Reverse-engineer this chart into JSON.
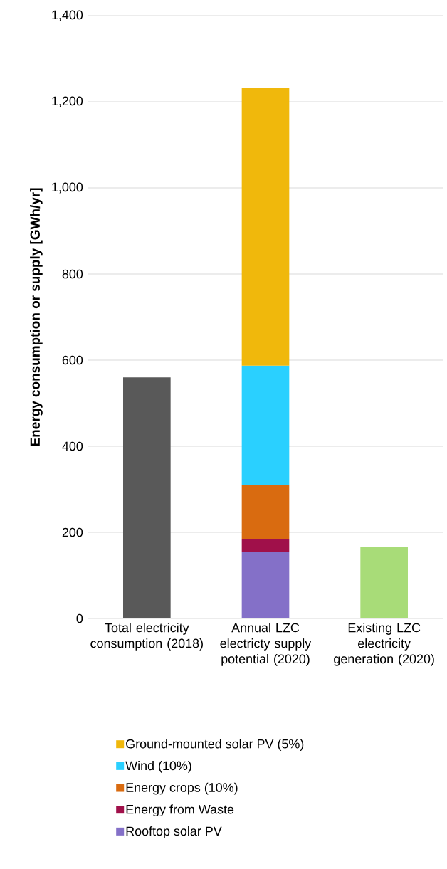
{
  "chart_data": {
    "type": "bar",
    "stacked": true,
    "ylabel": "Energy consumption or supply [GWh/yr]",
    "categories": [
      "Total electricity consumption (2018)",
      "Annual LZC electricty supply potential (2020)",
      "Existing LZC electricity generation (2020)"
    ],
    "series": [
      {
        "color": "#595959",
        "values": [
          560,
          null,
          null
        ]
      },
      {
        "name": "Rooftop solar PV",
        "color": "#8470c8",
        "values": [
          null,
          155,
          null
        ]
      },
      {
        "name": "Energy from Waste",
        "color": "#a0104a",
        "values": [
          null,
          30,
          null
        ]
      },
      {
        "name": "Energy crops (10%)",
        "color": "#d96b10",
        "values": [
          null,
          124,
          null
        ]
      },
      {
        "name": "Wind (10%)",
        "color": "#2ad0ff",
        "values": [
          null,
          278,
          null
        ]
      },
      {
        "name": "Ground-mounted solar PV (5%)",
        "color": "#f0b80c",
        "values": [
          null,
          646,
          null
        ]
      },
      {
        "color": "#a8dc78",
        "values": [
          null,
          null,
          167
        ]
      }
    ],
    "ylim": [
      0,
      1400
    ],
    "yticks": [
      0,
      200,
      400,
      600,
      800,
      {
        "value": 1000,
        "label": "1,000"
      },
      {
        "value": 1200,
        "label": "1,200"
      },
      {
        "value": 1400,
        "label": "1,400"
      }
    ],
    "grid": "y",
    "legend": "bottom"
  }
}
